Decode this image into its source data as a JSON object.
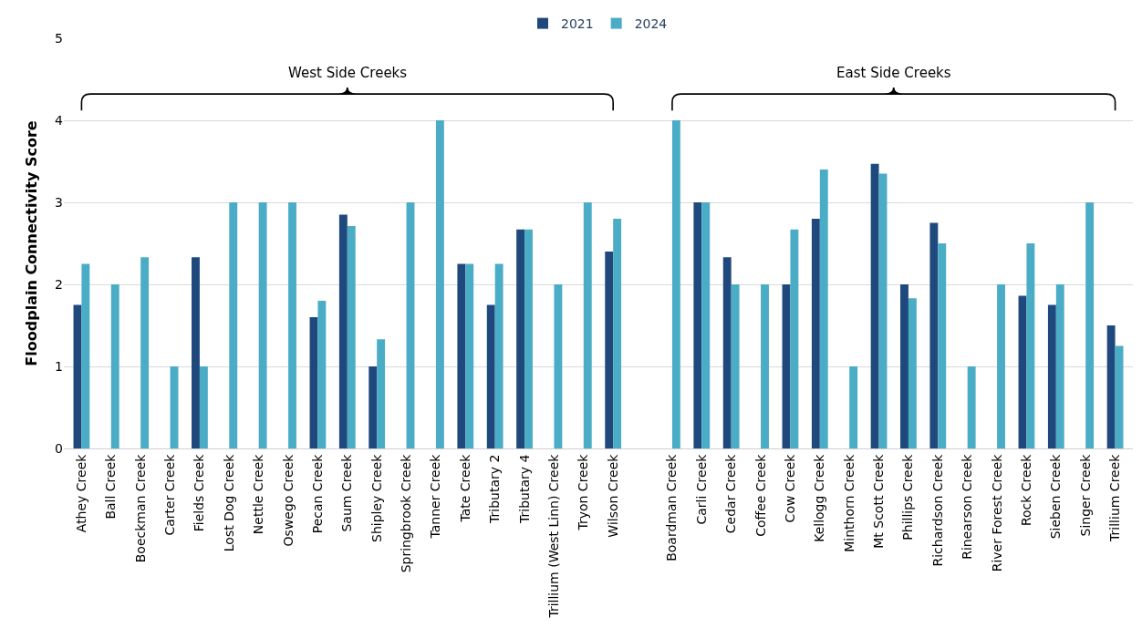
{
  "chart_data": {
    "type": "bar",
    "ylabel": "Floodplain Connectivity Score",
    "ylim": [
      0,
      5
    ],
    "yticks": [
      0,
      1,
      2,
      3,
      4,
      5
    ],
    "grid": "y",
    "legend": "top",
    "categories": [
      "Athey Creek",
      "Ball Creek",
      "Boeckman Creek",
      "Carter Creek",
      "Fields Creek",
      "Lost Dog Creek",
      "Nettle Creek",
      "Oswego Creek",
      "Pecan Creek",
      "Saum Creek",
      "Shipley Creek",
      "Springbrook Creek",
      "Tanner Creek",
      "Tate Creek",
      "Tributary 2",
      "Tributary 4",
      "Trillium (West Linn) Creek",
      "Tryon Creek",
      "Wilson Creek",
      null,
      "Boardman Creek",
      "Carli Creek",
      "Cedar Creek",
      "Coffee Creek",
      "Cow Creek",
      "Kellogg Creek",
      "Minthorn Creek",
      "Mt Scott Creek",
      "Phillips Creek",
      "Richardson Creek",
      "Rinearson Creek",
      "River Forest Creek",
      "Rock Creek",
      "Sieben Creek",
      "Singer Creek",
      "Trillium Creek"
    ],
    "series": [
      {
        "name": "2021",
        "color": "#1f497d",
        "values": [
          1.75,
          null,
          null,
          null,
          2.33,
          null,
          null,
          null,
          1.6,
          2.85,
          1,
          null,
          null,
          2.25,
          1.75,
          2.67,
          null,
          null,
          2.4,
          null,
          null,
          3,
          2.33,
          null,
          2,
          2.8,
          null,
          3.47,
          2,
          2.75,
          null,
          null,
          1.86,
          1.75,
          null,
          1.5
        ]
      },
      {
        "name": "2024",
        "color": "#4bacc6",
        "values": [
          2.25,
          2,
          2.33,
          1,
          1,
          3,
          3,
          3,
          1.8,
          2.71,
          1.33,
          3,
          4,
          2.25,
          2.25,
          2.67,
          2,
          3,
          2.8,
          null,
          4,
          3,
          2,
          2,
          2.67,
          3.4,
          1,
          3.35,
          1.83,
          2.5,
          1,
          2,
          2.5,
          2,
          3,
          1.25
        ]
      }
    ],
    "annotations": [
      "West Side Creeks",
      "East Side Creeks"
    ]
  }
}
